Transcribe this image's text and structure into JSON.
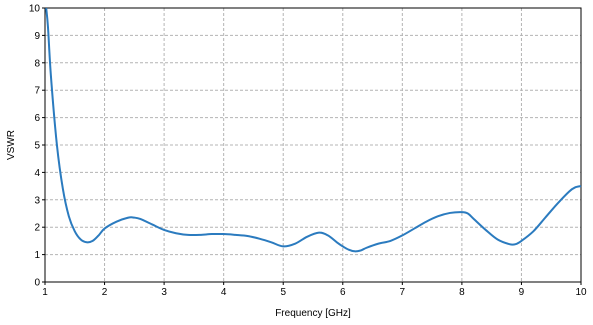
{
  "chart_data": {
    "type": "line",
    "title": "",
    "xlabel": "Frequency [GHz]",
    "ylabel": "VSWR",
    "xlim": [
      1,
      10
    ],
    "ylim": [
      0,
      10
    ],
    "xticks": [
      "1",
      "2",
      "3",
      "4",
      "5",
      "6",
      "7",
      "8",
      "9",
      "10"
    ],
    "yticks": [
      "0",
      "1",
      "2",
      "3",
      "4",
      "5",
      "6",
      "7",
      "8",
      "9",
      "10"
    ],
    "grid": true,
    "legend": "none",
    "series": [
      {
        "color": "#2b7bbf",
        "x": [
          1.02,
          1.05,
          1.1,
          1.2,
          1.3,
          1.4,
          1.5,
          1.6,
          1.7,
          1.8,
          1.9,
          2.0,
          2.2,
          2.4,
          2.5,
          2.6,
          2.8,
          3.0,
          3.2,
          3.4,
          3.6,
          3.8,
          4.0,
          4.2,
          4.4,
          4.6,
          4.8,
          5.0,
          5.2,
          5.4,
          5.6,
          5.75,
          5.9,
          6.0,
          6.1,
          6.2,
          6.3,
          6.4,
          6.6,
          6.8,
          7.0,
          7.2,
          7.4,
          7.6,
          7.8,
          8.0,
          8.1,
          8.2,
          8.4,
          8.6,
          8.8,
          8.9,
          9.0,
          9.2,
          9.4,
          9.6,
          9.8,
          9.9,
          10.0
        ],
        "y": [
          10.0,
          9.3,
          7.5,
          5.0,
          3.4,
          2.4,
          1.85,
          1.55,
          1.45,
          1.5,
          1.7,
          1.95,
          2.2,
          2.35,
          2.35,
          2.3,
          2.1,
          1.9,
          1.78,
          1.72,
          1.72,
          1.75,
          1.75,
          1.72,
          1.68,
          1.58,
          1.45,
          1.3,
          1.4,
          1.65,
          1.8,
          1.7,
          1.45,
          1.3,
          1.18,
          1.12,
          1.15,
          1.25,
          1.4,
          1.5,
          1.7,
          1.95,
          2.2,
          2.4,
          2.52,
          2.55,
          2.5,
          2.3,
          1.9,
          1.55,
          1.38,
          1.38,
          1.5,
          1.85,
          2.35,
          2.85,
          3.3,
          3.45,
          3.5
        ]
      }
    ]
  }
}
